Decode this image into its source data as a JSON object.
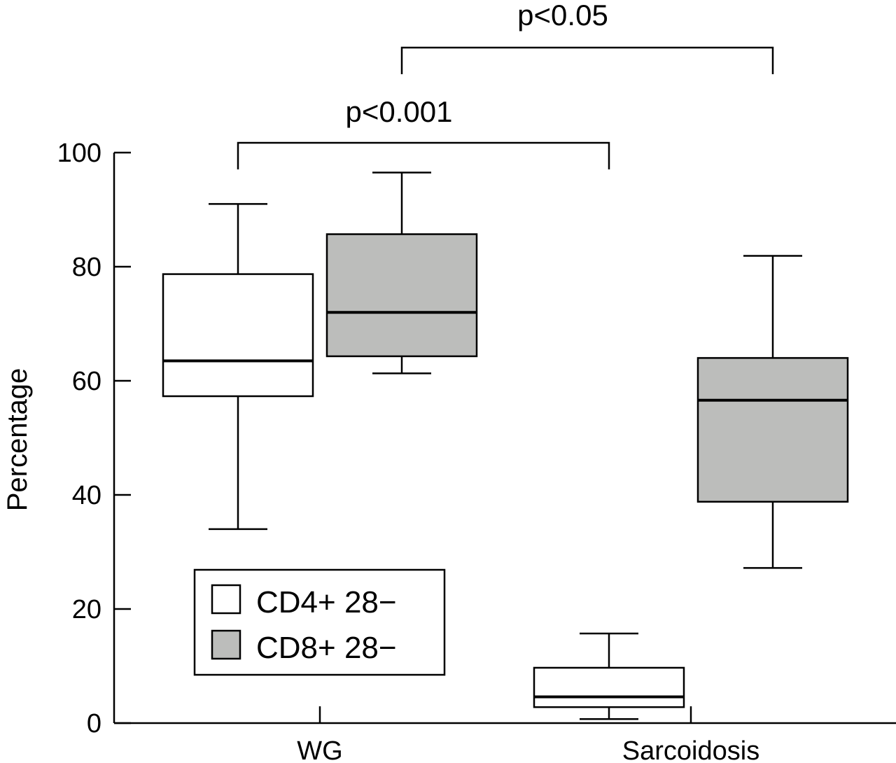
{
  "chart_data": {
    "type": "box",
    "title": "",
    "xlabel": "",
    "ylabel": "Percentage",
    "ylim": [
      0,
      100
    ],
    "yticks": [
      "0",
      "20",
      "40",
      "60",
      "80",
      "100"
    ],
    "categories": [
      "WG",
      "Sarcoidosis"
    ],
    "series": [
      {
        "name": "CD4+ 28−",
        "color": "#ffffff",
        "boxes": [
          {
            "min": 34,
            "q1": 57.3,
            "median": 63.5,
            "q3": 78.7,
            "max": 91
          },
          {
            "min": 0.7,
            "q1": 2.8,
            "median": 4.6,
            "q3": 9.7,
            "max": 15.7
          }
        ]
      },
      {
        "name": "CD8+ 28−",
        "color": "#bcbdbb",
        "boxes": [
          {
            "min": 61.3,
            "q1": 64.3,
            "median": 72,
            "q3": 85.7,
            "max": 96.5
          },
          {
            "min": 27.2,
            "q1": 38.8,
            "median": 56.6,
            "q3": 64,
            "max": 81.9
          }
        ]
      }
    ],
    "significance": [
      {
        "label": "p<0.001",
        "from": "WG CD4+ 28−",
        "to": "Sarcoidosis CD4+ 28−"
      },
      {
        "label": "p<0.05",
        "from": "WG CD8+ 28−",
        "to": "Sarcoidosis CD8+ 28−"
      }
    ],
    "legend": {
      "position": "bottom-left",
      "entries": [
        "CD4+ 28−",
        "CD8+ 28−"
      ]
    }
  }
}
